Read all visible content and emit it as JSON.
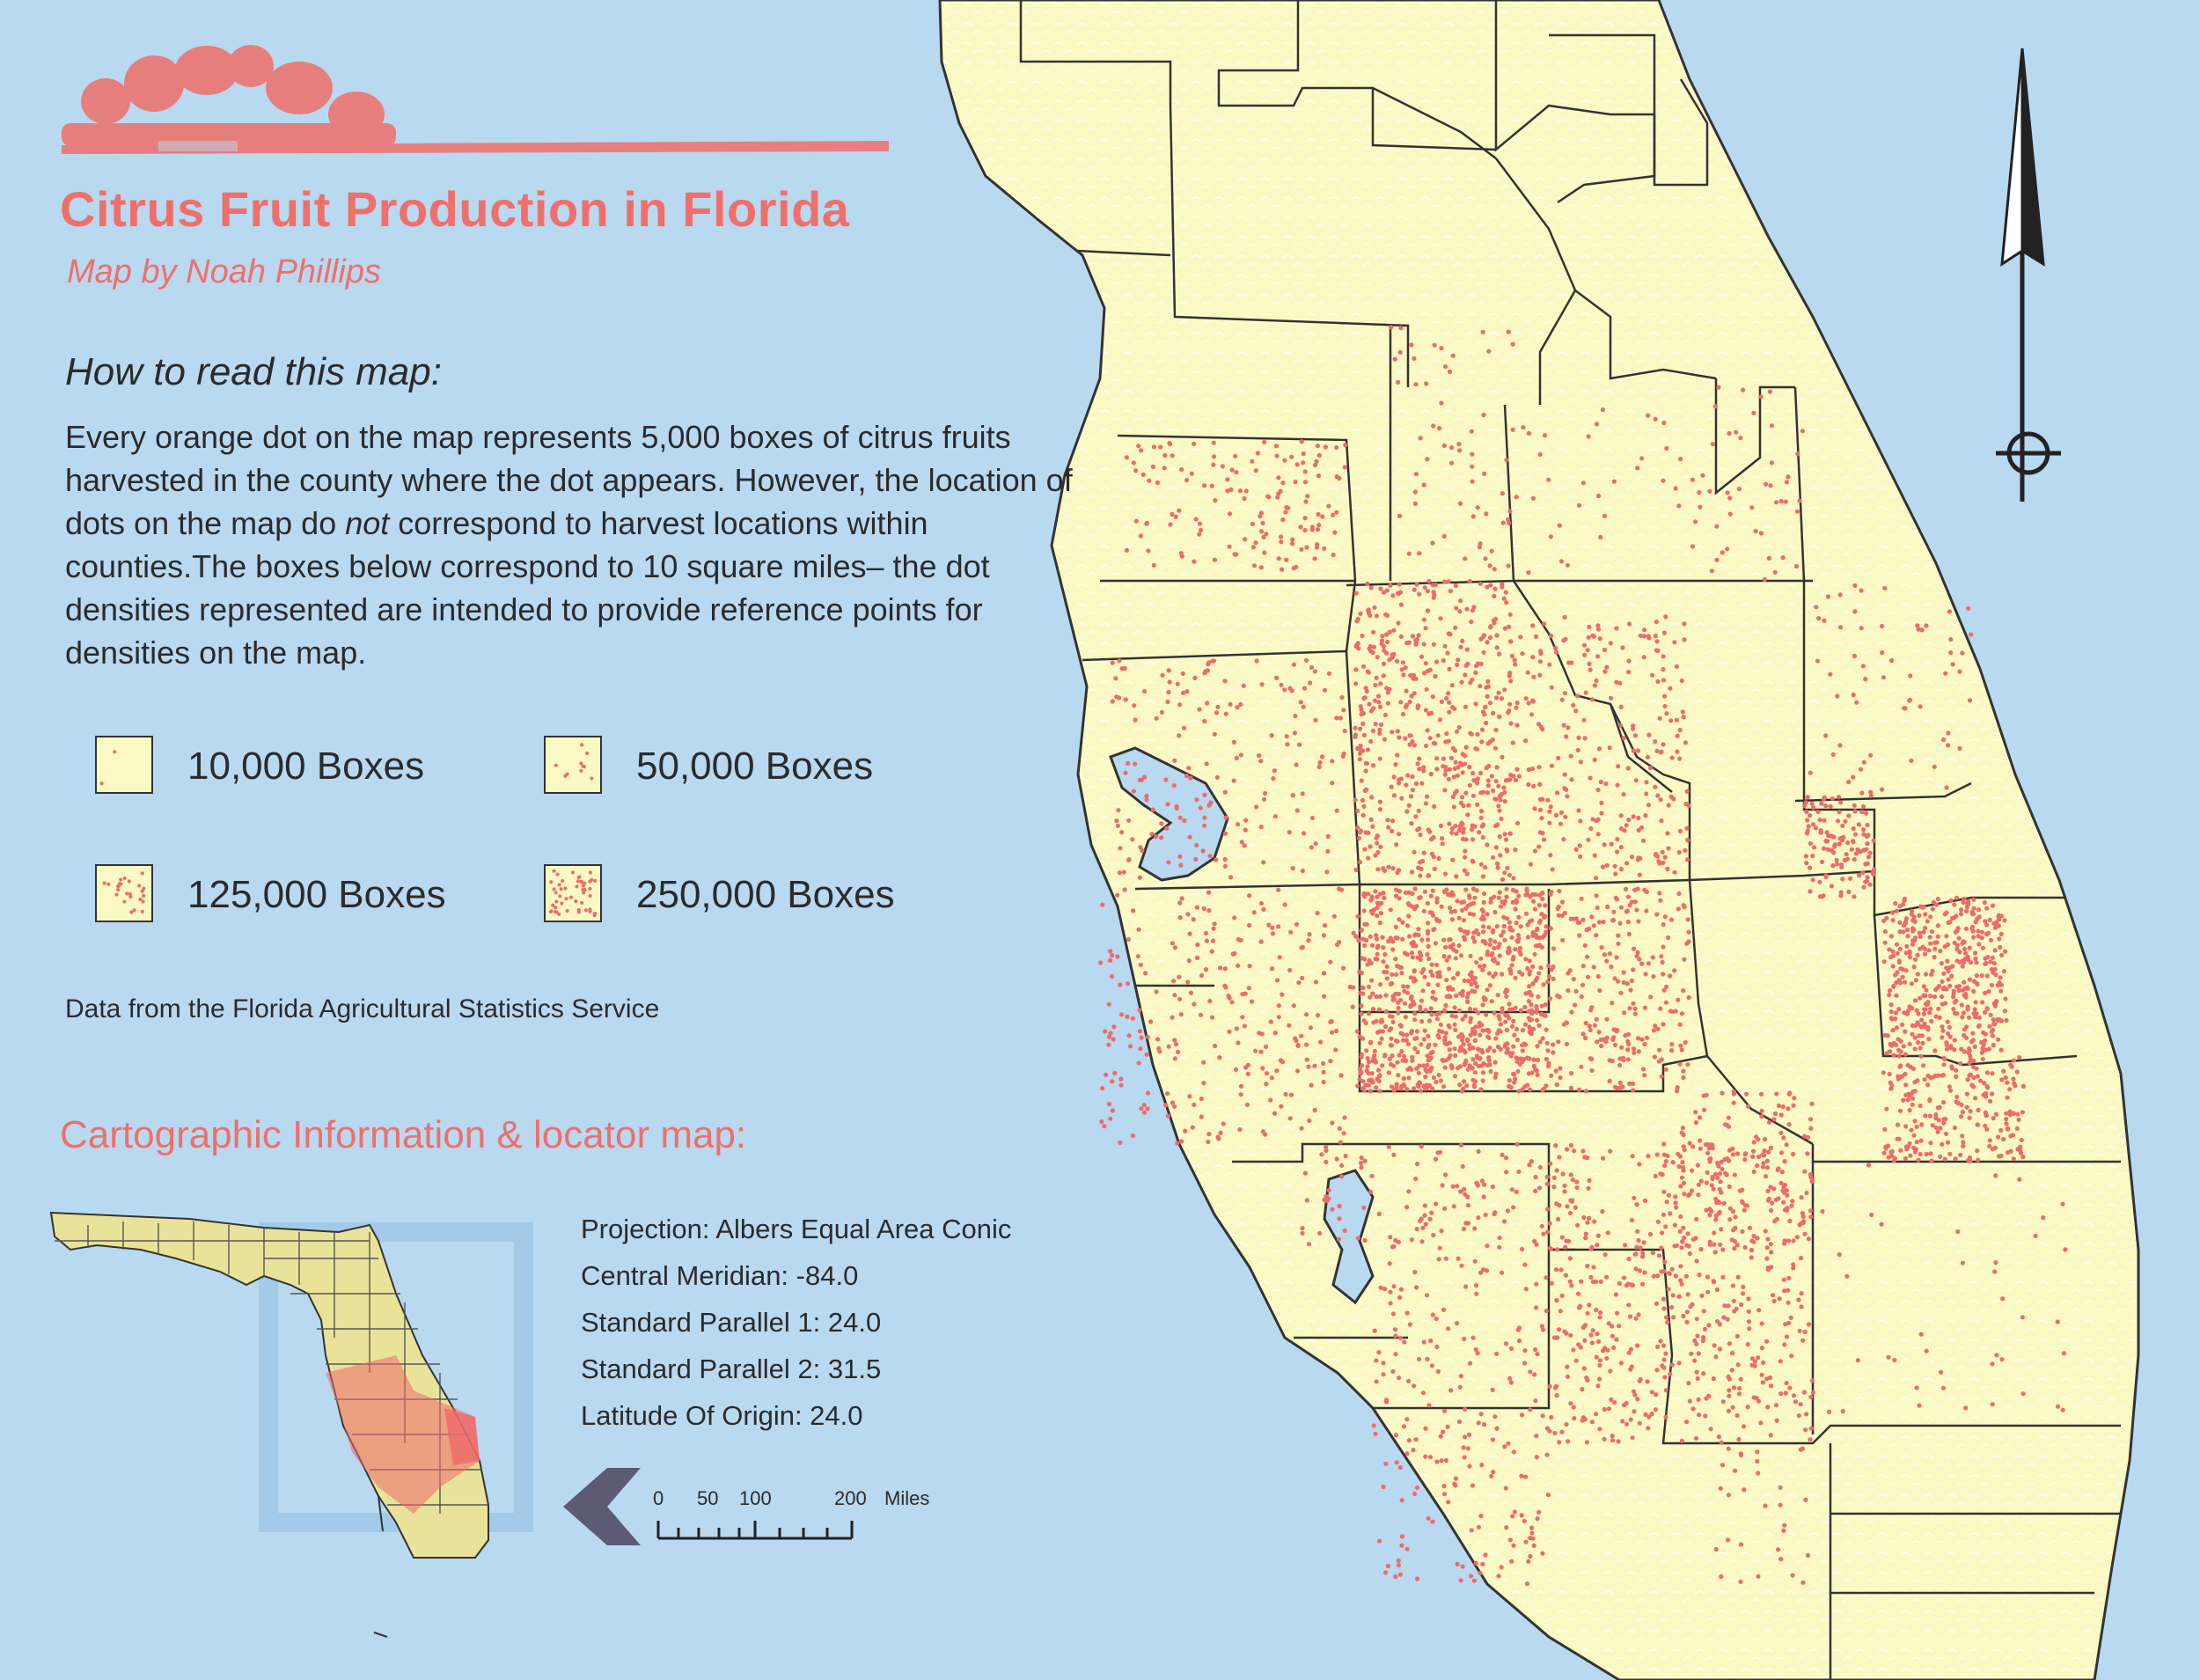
{
  "header": {
    "title": "Citrus Fruit Production in Florida",
    "byline": "Map by Noah Phillips"
  },
  "howto": {
    "heading": "How to read this map:",
    "text_before_not": "Every orange dot on the map represents 5,000 boxes of citrus fruits harvested in the county where the dot appears. However, the location of dots on the map do ",
    "not_word": "not",
    "text_after_not": " correspond to harvest locations within counties.The boxes below correspond to 10 square miles– the dot densities represented are intended to provide reference points for densities on the map."
  },
  "legend": {
    "items": [
      {
        "label": "10,000 Boxes",
        "dots": 2
      },
      {
        "label": "50,000 Boxes",
        "dots": 10
      },
      {
        "label": "125,000 Boxes",
        "dots": 25
      },
      {
        "label": "250,000 Boxes",
        "dots": 50
      }
    ]
  },
  "source": "Data from the Florida Agricultural Statistics Service",
  "cartographic": {
    "heading": "Cartographic Information & locator map:",
    "lines": [
      "Projection: Albers Equal Area Conic",
      "Central Meridian: -84.0",
      "Standard Parallel 1: 24.0",
      "Standard Parallel 2: 31.5",
      "Latitude Of Origin: 24.0"
    ]
  },
  "scale_bar": {
    "ticks": [
      "0",
      "50",
      "100",
      "200"
    ],
    "unit": "Miles"
  },
  "colors": {
    "ocean": "#b9d9f1",
    "land": "#fbf9c3",
    "dot": "#ef6a6a",
    "title": "#ef6f6a",
    "border": "#333333",
    "locator_land": "#e9e39a",
    "arrow": "#5d5a74"
  },
  "icons": {
    "logo": "citrus-logo-icon",
    "north_arrow": "north-arrow-icon",
    "direction_arrow": "chevron-left-icon"
  }
}
